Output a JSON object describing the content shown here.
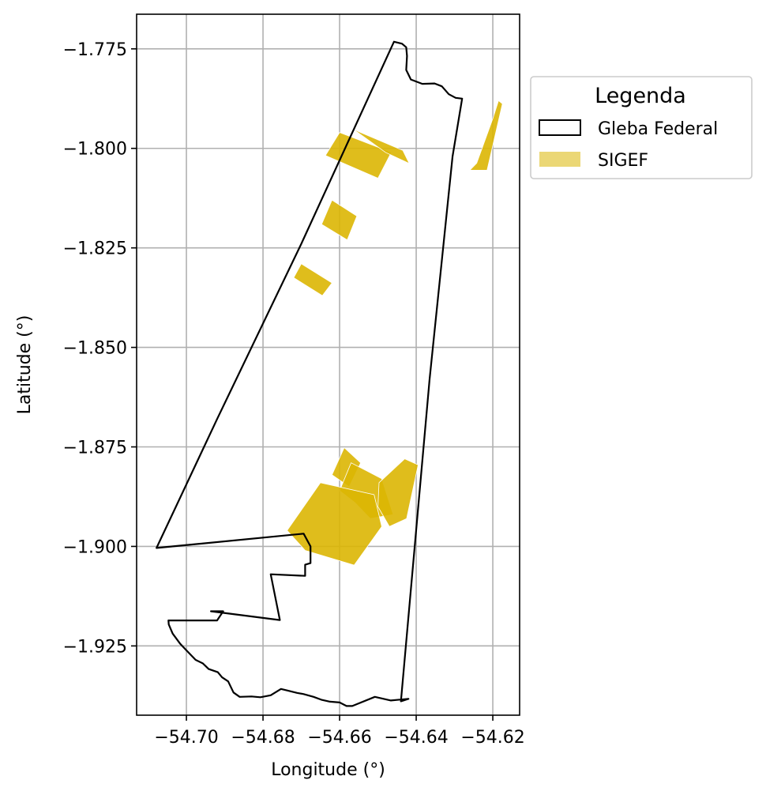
{
  "chart_data": {
    "type": "map",
    "xlabel": "Longitude (°)",
    "ylabel": "Latitude (°)",
    "xlim": [
      -54.713,
      -54.613
    ],
    "ylim": [
      -1.9424,
      -1.7663
    ],
    "grid": true,
    "x_ticks": [
      -54.7,
      -54.68,
      -54.66,
      -54.64,
      -54.62
    ],
    "x_tick_labels": [
      "−54.70",
      "−54.68",
      "−54.66",
      "−54.64",
      "−54.62"
    ],
    "y_ticks": [
      -1.775,
      -1.8,
      -1.825,
      -1.85,
      -1.875,
      -1.9,
      -1.925
    ],
    "y_tick_labels": [
      "−1.775",
      "−1.800",
      "−1.825",
      "−1.850",
      "−1.875",
      "−1.900",
      "−1.925"
    ],
    "legend": {
      "title": "Legenda",
      "position": "outside-upper-right",
      "entries": [
        {
          "label": "Gleba Federal",
          "style": "outline",
          "color": "#000000"
        },
        {
          "label": "SIGEF",
          "style": "fill",
          "color": "#DBB603"
        }
      ]
    },
    "series": [
      {
        "name": "Gleba Federal",
        "geometry": "polygon",
        "coordinates": [
          [
            -54.6458,
            -1.7732
          ],
          [
            -54.6437,
            -1.7737
          ],
          [
            -54.6426,
            -1.7746
          ],
          [
            -54.6424,
            -1.7768
          ],
          [
            -54.6426,
            -1.7803
          ],
          [
            -54.6414,
            -1.7827
          ],
          [
            -54.6384,
            -1.7838
          ],
          [
            -54.6352,
            -1.7837
          ],
          [
            -54.6333,
            -1.7844
          ],
          [
            -54.6315,
            -1.7864
          ],
          [
            -54.6297,
            -1.7873
          ],
          [
            -54.628,
            -1.7875
          ],
          [
            -54.6305,
            -1.802
          ],
          [
            -54.6365,
            -1.858
          ],
          [
            -54.644,
            -1.9389
          ],
          [
            -54.642,
            -1.9383
          ],
          [
            -54.6466,
            -1.9387
          ],
          [
            -54.6508,
            -1.9378
          ],
          [
            -54.6567,
            -1.9401
          ],
          [
            -54.6582,
            -1.9401
          ],
          [
            -54.66,
            -1.9392
          ],
          [
            -54.6625,
            -1.939
          ],
          [
            -54.6648,
            -1.9385
          ],
          [
            -54.6668,
            -1.9378
          ],
          [
            -54.6694,
            -1.9371
          ],
          [
            -54.6711,
            -1.9368
          ],
          [
            -54.6736,
            -1.9362
          ],
          [
            -54.6753,
            -1.9358
          ],
          [
            -54.678,
            -1.9374
          ],
          [
            -54.6807,
            -1.9379
          ],
          [
            -54.683,
            -1.9377
          ],
          [
            -54.6861,
            -1.9378
          ],
          [
            -54.6877,
            -1.9367
          ],
          [
            -54.6891,
            -1.9339
          ],
          [
            -54.6907,
            -1.9329
          ],
          [
            -54.6918,
            -1.9316
          ],
          [
            -54.6942,
            -1.9308
          ],
          [
            -54.6957,
            -1.9294
          ],
          [
            -54.6976,
            -1.9285
          ],
          [
            -54.7,
            -1.9261
          ],
          [
            -54.7016,
            -1.9245
          ],
          [
            -54.7036,
            -1.9219
          ],
          [
            -54.7046,
            -1.9196
          ],
          [
            -54.7047,
            -1.9186
          ],
          [
            -54.692,
            -1.9186
          ],
          [
            -54.6904,
            -1.9163
          ],
          [
            -54.6936,
            -1.9163
          ],
          [
            -54.6756,
            -1.9185
          ],
          [
            -54.678,
            -1.907
          ],
          [
            -54.669,
            -1.9074
          ],
          [
            -54.669,
            -1.9046
          ],
          [
            -54.6676,
            -1.9042
          ],
          [
            -54.6676,
            -1.9
          ],
          [
            -54.6694,
            -1.8968
          ],
          [
            -54.7078,
            -1.9004
          ],
          [
            -54.692,
            -1.868
          ],
          [
            -54.67,
            -1.824
          ],
          [
            -54.6458,
            -1.7732
          ]
        ]
      },
      {
        "name": "SIGEF",
        "geometry": "multipolygon",
        "polygons": [
          [
            [
              -54.6637,
              -1.8018
            ],
            [
              -54.66,
              -1.796
            ],
            [
              -54.6465,
              -1.801
            ],
            [
              -54.65,
              -1.8075
            ]
          ],
          [
            [
              -54.657,
              -1.7948
            ],
            [
              -54.655,
              -1.7958
            ],
            [
              -54.6435,
              -1.8005
            ],
            [
              -54.6418,
              -1.8038
            ],
            [
              -54.648,
              -1.801
            ]
          ],
          [
            [
              -54.6242,
              -1.8037
            ],
            [
              -54.62,
              -1.7925
            ],
            [
              -54.6185,
              -1.788
            ],
            [
              -54.6175,
              -1.7888
            ],
            [
              -54.6215,
              -1.8055
            ],
            [
              -54.626,
              -1.8055
            ]
          ],
          [
            [
              -54.6647,
              -1.8191
            ],
            [
              -54.662,
              -1.813
            ],
            [
              -54.6555,
              -1.817
            ],
            [
              -54.658,
              -1.823
            ]
          ],
          [
            [
              -54.672,
              -1.8325
            ],
            [
              -54.67,
              -1.829
            ],
            [
              -54.662,
              -1.8338
            ],
            [
              -54.6645,
              -1.837
            ]
          ],
          [
            [
              -54.662,
              -1.882
            ],
            [
              -54.6588,
              -1.8752
            ],
            [
              -54.6545,
              -1.879
            ],
            [
              -54.6575,
              -1.885
            ]
          ],
          [
            [
              -54.66,
              -1.886
            ],
            [
              -54.657,
              -1.879
            ],
            [
              -54.653,
              -1.881
            ],
            [
              -54.649,
              -1.883
            ],
            [
              -54.646,
              -1.892
            ],
            [
              -54.652,
              -1.893
            ],
            [
              -54.656,
              -1.889
            ]
          ],
          [
            [
              -54.665,
              -1.884
            ],
            [
              -54.6737,
              -1.896
            ],
            [
              -54.669,
              -1.901
            ],
            [
              -54.6562,
              -1.9047
            ],
            [
              -54.649,
              -1.895
            ],
            [
              -54.651,
              -1.887
            ]
          ],
          [
            [
              -54.6497,
              -1.884
            ],
            [
              -54.643,
              -1.878
            ],
            [
              -54.6395,
              -1.8795
            ],
            [
              -54.6425,
              -1.893
            ],
            [
              -54.647,
              -1.895
            ],
            [
              -54.65,
              -1.89
            ]
          ]
        ]
      }
    ]
  }
}
